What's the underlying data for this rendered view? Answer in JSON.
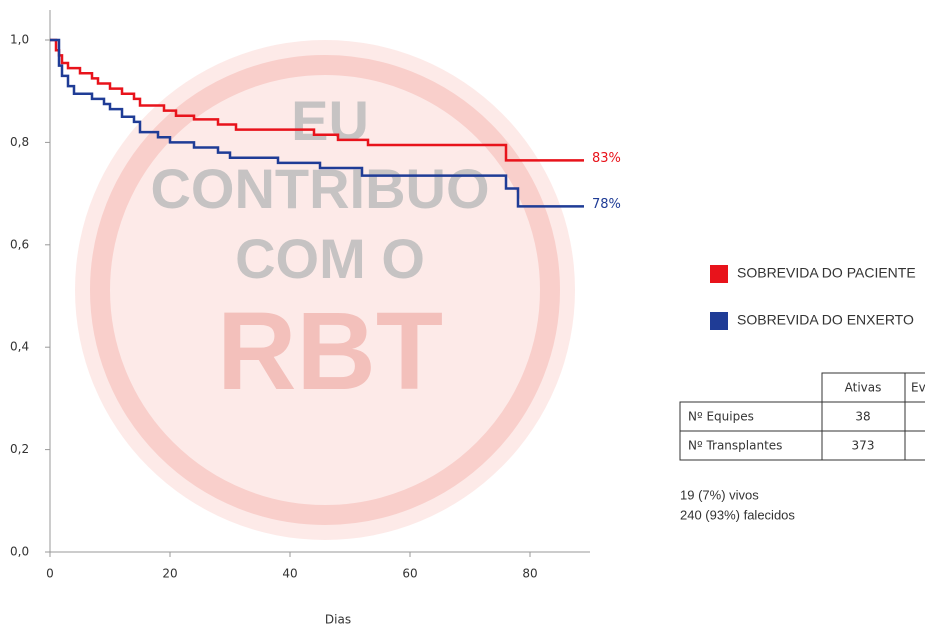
{
  "chart_data": {
    "type": "step",
    "xlabel": "Dias",
    "xlim": [
      0,
      90
    ],
    "ylim": [
      0,
      1
    ],
    "xticks": [
      0,
      20,
      40,
      60,
      80
    ],
    "yticks": [
      {
        "value": 0,
        "label": "0,0"
      },
      {
        "value": 0.2,
        "label": "0,2"
      },
      {
        "value": 0.4,
        "label": "0,4"
      },
      {
        "value": 0.6,
        "label": "0,6"
      },
      {
        "value": 0.8,
        "label": "0,8"
      },
      {
        "value": 1,
        "label": "1,0"
      }
    ],
    "series": [
      {
        "name": "SOBREVIDA DO PACIENTE",
        "color": "#e8131b",
        "end_label": "83%",
        "x": [
          0,
          1,
          1.5,
          2,
          3,
          5,
          7,
          8,
          10,
          12,
          14,
          15,
          19,
          21,
          24,
          28,
          31,
          44,
          48,
          53,
          76,
          89
        ],
        "values": [
          1,
          0.98,
          0.97,
          0.955,
          0.945,
          0.935,
          0.925,
          0.915,
          0.905,
          0.895,
          0.885,
          0.872,
          0.862,
          0.852,
          0.845,
          0.835,
          0.825,
          0.815,
          0.805,
          0.795,
          0.765,
          0.765
        ]
      },
      {
        "name": "SOBREVIDA DO ENXERTO",
        "color": "#1f3c96",
        "end_label": "78%",
        "x": [
          0,
          1.5,
          2,
          3,
          4,
          7,
          9,
          10,
          12,
          14,
          15,
          18,
          20,
          24,
          28,
          30,
          38,
          45,
          52,
          76,
          78,
          89
        ],
        "values": [
          1,
          0.95,
          0.93,
          0.91,
          0.895,
          0.885,
          0.875,
          0.865,
          0.85,
          0.84,
          0.82,
          0.81,
          0.8,
          0.79,
          0.78,
          0.77,
          0.76,
          0.75,
          0.735,
          0.71,
          0.675,
          0.675
        ]
      }
    ],
    "watermark": [
      "EU",
      "CONTRIBUO",
      "COM O",
      "RBT"
    ]
  },
  "table": {
    "header": [
      "Ativas",
      "Ev"
    ],
    "rows": [
      [
        "Nº Equipes",
        "38"
      ],
      [
        "Nº Transplantes",
        "373"
      ]
    ]
  },
  "notes": [
    "19 (7%) vivos",
    "240 (93%) falecidos"
  ]
}
